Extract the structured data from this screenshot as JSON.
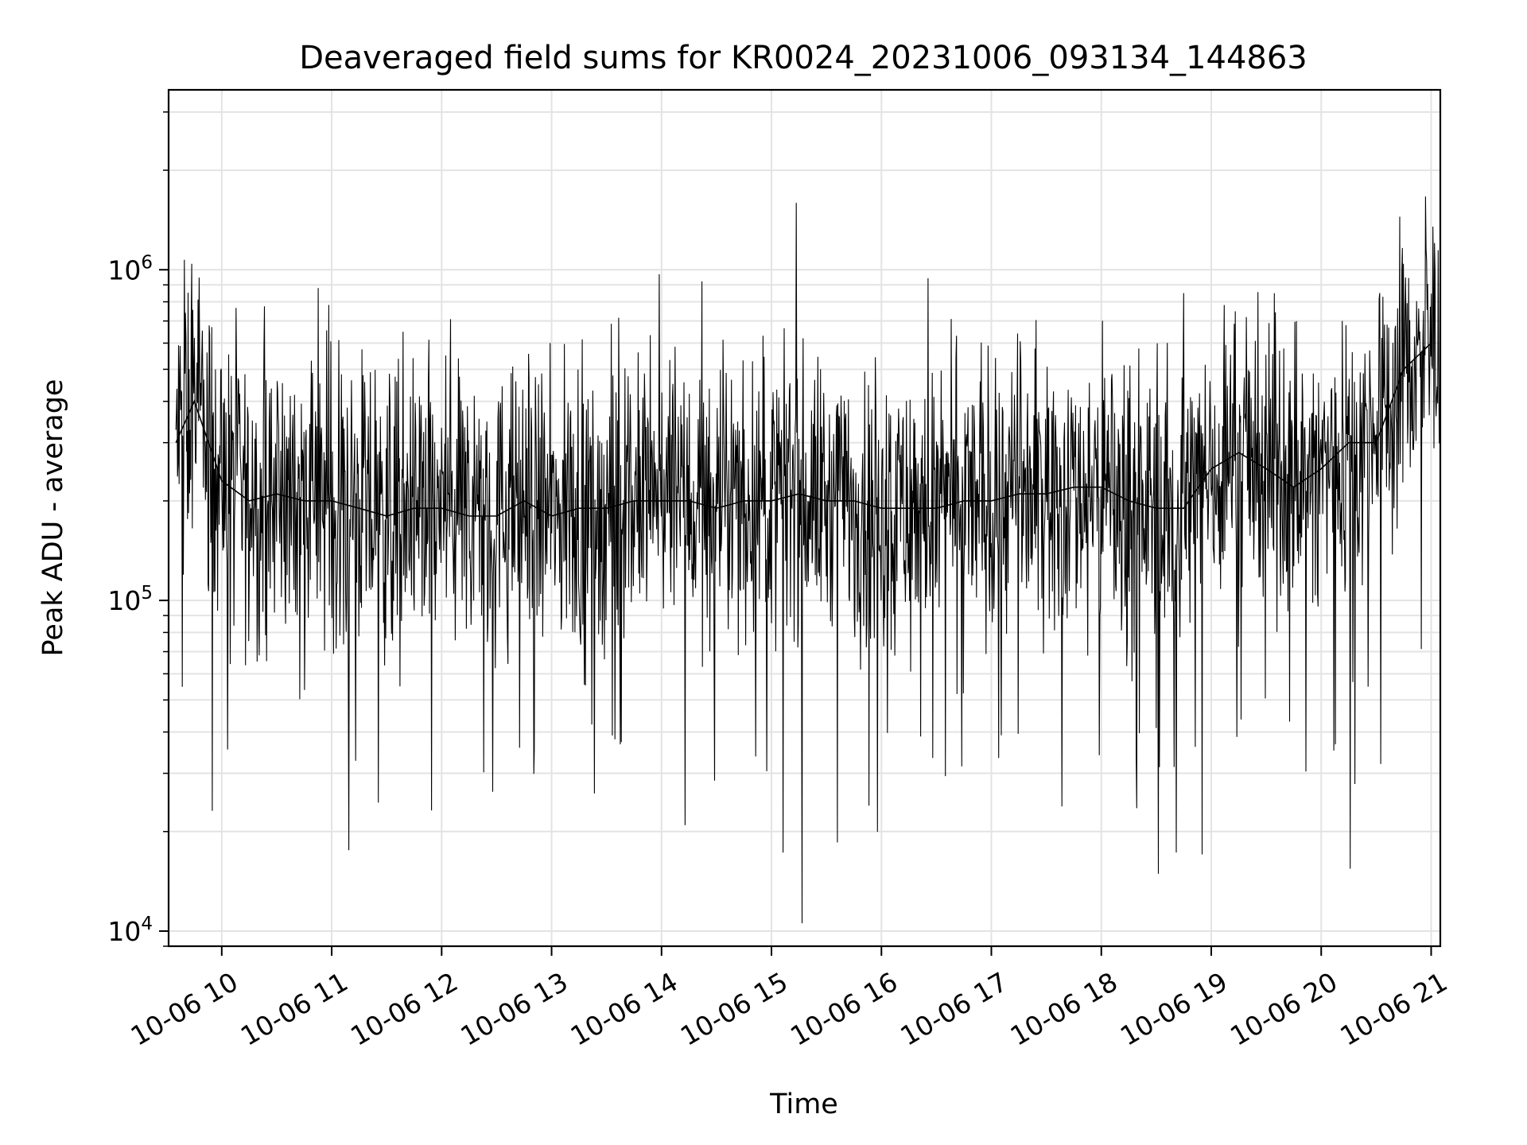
{
  "chart_data": {
    "type": "line",
    "title": "Deaveraged field sums for KR0024_20231006_093134_144863",
    "xlabel": "Time",
    "ylabel": "Peak ADU - average",
    "x_type": "time",
    "xlim": [
      "2023-10-06 09:31",
      "2023-10-06 21:05"
    ],
    "x_ticks": [
      "2023-10-06 10:00",
      "2023-10-06 11:00",
      "2023-10-06 12:00",
      "2023-10-06 13:00",
      "2023-10-06 14:00",
      "2023-10-06 15:00",
      "2023-10-06 16:00",
      "2023-10-06 17:00",
      "2023-10-06 18:00",
      "2023-10-06 19:00",
      "2023-10-06 20:00",
      "2023-10-06 21:00"
    ],
    "x_tick_labels": [
      "10-06 10",
      "10-06 11",
      "10-06 12",
      "10-06 13",
      "10-06 14",
      "10-06 15",
      "10-06 16",
      "10-06 17",
      "10-06 18",
      "10-06 19",
      "10-06 20",
      "10-06 21"
    ],
    "y_scale": "log",
    "ylim": [
      9000,
      3500000
    ],
    "y_ticks": [
      10000,
      100000,
      1000000
    ],
    "y_tick_base": "10",
    "y_tick_exponents": [
      "4",
      "5",
      "6"
    ],
    "grid": true,
    "line_color": "#000000",
    "series": [
      {
        "x": [
          "2023-10-06 09:35",
          "2023-10-06 09:45",
          "2023-10-06 10:00",
          "2023-10-06 10:15",
          "2023-10-06 10:30",
          "2023-10-06 10:45",
          "2023-10-06 11:00",
          "2023-10-06 11:15",
          "2023-10-06 11:30",
          "2023-10-06 11:45",
          "2023-10-06 12:00",
          "2023-10-06 12:15",
          "2023-10-06 12:30",
          "2023-10-06 12:45",
          "2023-10-06 13:00",
          "2023-10-06 13:15",
          "2023-10-06 13:30",
          "2023-10-06 13:45",
          "2023-10-06 14:00",
          "2023-10-06 14:15",
          "2023-10-06 14:30",
          "2023-10-06 14:45",
          "2023-10-06 15:00",
          "2023-10-06 15:15",
          "2023-10-06 15:30",
          "2023-10-06 15:45",
          "2023-10-06 16:00",
          "2023-10-06 16:15",
          "2023-10-06 16:30",
          "2023-10-06 16:45",
          "2023-10-06 17:00",
          "2023-10-06 17:15",
          "2023-10-06 17:30",
          "2023-10-06 17:45",
          "2023-10-06 18:00",
          "2023-10-06 18:15",
          "2023-10-06 18:30",
          "2023-10-06 18:45",
          "2023-10-06 19:00",
          "2023-10-06 19:15",
          "2023-10-06 19:30",
          "2023-10-06 19:45",
          "2023-10-06 20:00",
          "2023-10-06 20:15",
          "2023-10-06 20:30",
          "2023-10-06 20:45",
          "2023-10-06 21:00"
        ],
        "y": [
          300000,
          400000,
          230000,
          200000,
          210000,
          200000,
          200000,
          190000,
          180000,
          190000,
          190000,
          180000,
          180000,
          200000,
          180000,
          190000,
          190000,
          200000,
          200000,
          200000,
          190000,
          200000,
          200000,
          210000,
          200000,
          200000,
          190000,
          190000,
          190000,
          200000,
          200000,
          210000,
          210000,
          220000,
          220000,
          200000,
          190000,
          190000,
          250000,
          280000,
          250000,
          220000,
          250000,
          300000,
          300000,
          500000,
          600000
        ]
      }
    ]
  }
}
